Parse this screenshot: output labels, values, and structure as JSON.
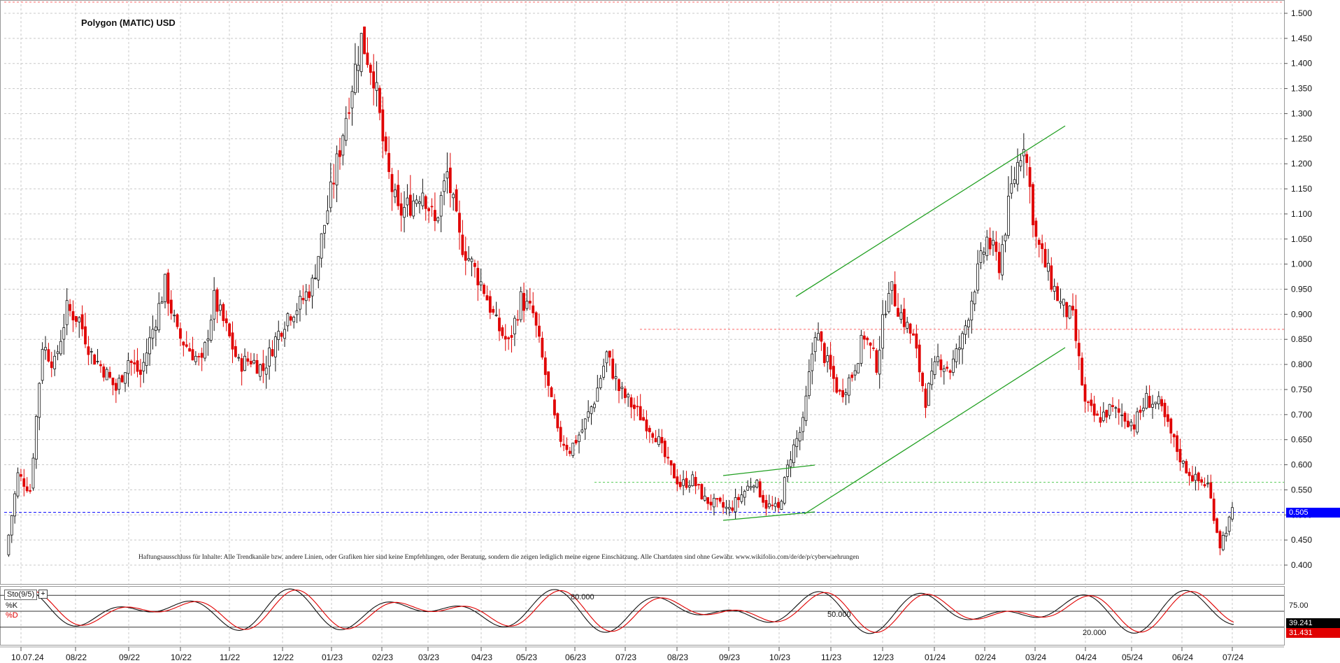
{
  "title": "Polygon (MATIC) USD",
  "disclaimer": "Haftungsausschluss für Inhalte: Alle Trendkanäle bzw. andere Linien, oder Grafiken hier sind keine Empfehlungen, oder Beratung, sondern die zeigen lediglich meine eigene Einschätzung. Alle Chartdaten sind ohne Gewähr. www.wikifolio.com/de/de/p/cyberwaehrungen",
  "indicator": {
    "name": "Sto(9/5)",
    "k_label": "%K",
    "d_label": "%D",
    "levels": [
      "80.000",
      "50.000",
      "20.000"
    ],
    "axis_labels": [
      "75.00"
    ],
    "k_value": "39.241",
    "d_value": "31.431",
    "k_color": "#111111",
    "d_color": "#e00000"
  },
  "current_price": {
    "label": "0.505",
    "color": "#0000ff"
  },
  "colors": {
    "up": "#111111",
    "down": "#e00000",
    "channel": "#22a022",
    "grid": "#c8c8c8"
  },
  "chart_data": {
    "type": "candlestick",
    "title": "Polygon (MATIC) USD",
    "ylim": [
      0.37,
      1.52
    ],
    "y_ticks": [
      "0.400",
      "0.450",
      "0.500",
      "0.550",
      "0.600",
      "0.650",
      "0.700",
      "0.750",
      "0.800",
      "0.850",
      "0.900",
      "0.950",
      "1.000",
      "1.050",
      "1.100",
      "1.150",
      "1.200",
      "1.250",
      "1.300",
      "1.350",
      "1.400",
      "1.450",
      "1.500"
    ],
    "x_tick_labels": [
      "10.07.24",
      "08/22",
      "09/22",
      "10/22",
      "11/22",
      "12/22",
      "01/23",
      "02/23",
      "03/23",
      "04/23",
      "05/23",
      "06/23",
      "07/23",
      "08/23",
      "09/23",
      "10/23",
      "11/23",
      "12/23",
      "01/24",
      "02/24",
      "03/24",
      "04/24",
      "05/24",
      "06/24",
      "07/24"
    ],
    "close_series": [
      [
        0,
        0.42
      ],
      [
        1,
        0.58
      ],
      [
        2,
        0.55
      ],
      [
        3,
        0.84
      ],
      [
        4,
        0.8
      ],
      [
        5,
        0.91
      ],
      [
        6,
        0.89
      ],
      [
        7,
        0.82
      ],
      [
        8,
        0.79
      ],
      [
        9,
        0.75
      ],
      [
        10,
        0.81
      ],
      [
        11,
        0.78
      ],
      [
        12,
        0.87
      ],
      [
        13,
        0.96
      ],
      [
        14,
        0.86
      ],
      [
        15,
        0.83
      ],
      [
        16,
        0.8
      ],
      [
        17,
        0.93
      ],
      [
        18,
        0.87
      ],
      [
        19,
        0.8
      ],
      [
        20,
        0.81
      ],
      [
        21,
        0.79
      ],
      [
        22,
        0.85
      ],
      [
        23,
        0.9
      ],
      [
        24,
        0.92
      ],
      [
        25,
        0.96
      ],
      [
        26,
        1.08
      ],
      [
        27,
        1.2
      ],
      [
        28,
        1.33
      ],
      [
        29,
        1.45
      ],
      [
        30,
        1.38
      ],
      [
        31,
        1.2
      ],
      [
        32,
        1.1
      ],
      [
        33,
        1.12
      ],
      [
        34,
        1.15
      ],
      [
        35,
        1.08
      ],
      [
        36,
        1.18
      ],
      [
        37,
        1.05
      ],
      [
        38,
        1.0
      ],
      [
        39,
        0.95
      ],
      [
        40,
        0.88
      ],
      [
        41,
        0.84
      ],
      [
        42,
        0.93
      ],
      [
        43,
        0.9
      ],
      [
        44,
        0.78
      ],
      [
        45,
        0.66
      ],
      [
        46,
        0.63
      ],
      [
        47,
        0.67
      ],
      [
        48,
        0.73
      ],
      [
        49,
        0.82
      ],
      [
        50,
        0.75
      ],
      [
        51,
        0.72
      ],
      [
        52,
        0.69
      ],
      [
        53,
        0.66
      ],
      [
        54,
        0.6
      ],
      [
        55,
        0.56
      ],
      [
        56,
        0.57
      ],
      [
        57,
        0.53
      ],
      [
        58,
        0.52
      ],
      [
        59,
        0.51
      ],
      [
        60,
        0.54
      ],
      [
        61,
        0.57
      ],
      [
        62,
        0.52
      ],
      [
        63,
        0.51
      ],
      [
        64,
        0.62
      ],
      [
        65,
        0.68
      ],
      [
        66,
        0.87
      ],
      [
        67,
        0.8
      ],
      [
        68,
        0.74
      ],
      [
        69,
        0.78
      ],
      [
        70,
        0.86
      ],
      [
        71,
        0.8
      ],
      [
        72,
        0.96
      ],
      [
        73,
        0.9
      ],
      [
        74,
        0.85
      ],
      [
        75,
        0.73
      ],
      [
        76,
        0.81
      ],
      [
        77,
        0.79
      ],
      [
        78,
        0.85
      ],
      [
        79,
        0.96
      ],
      [
        80,
        1.05
      ],
      [
        81,
        1.0
      ],
      [
        82,
        1.15
      ],
      [
        83,
        1.25
      ],
      [
        84,
        1.05
      ],
      [
        85,
        0.98
      ],
      [
        86,
        0.92
      ],
      [
        87,
        0.89
      ],
      [
        88,
        0.72
      ],
      [
        89,
        0.69
      ],
      [
        90,
        0.71
      ],
      [
        91,
        0.7
      ],
      [
        92,
        0.68
      ],
      [
        93,
        0.73
      ],
      [
        94,
        0.72
      ],
      [
        95,
        0.66
      ],
      [
        96,
        0.6
      ],
      [
        97,
        0.57
      ],
      [
        98,
        0.56
      ],
      [
        99,
        0.44
      ],
      [
        100,
        0.505
      ]
    ],
    "annotations": [
      "trend channel lines",
      "horizontal support 0.565",
      "horizontal resistance 0.87"
    ]
  }
}
